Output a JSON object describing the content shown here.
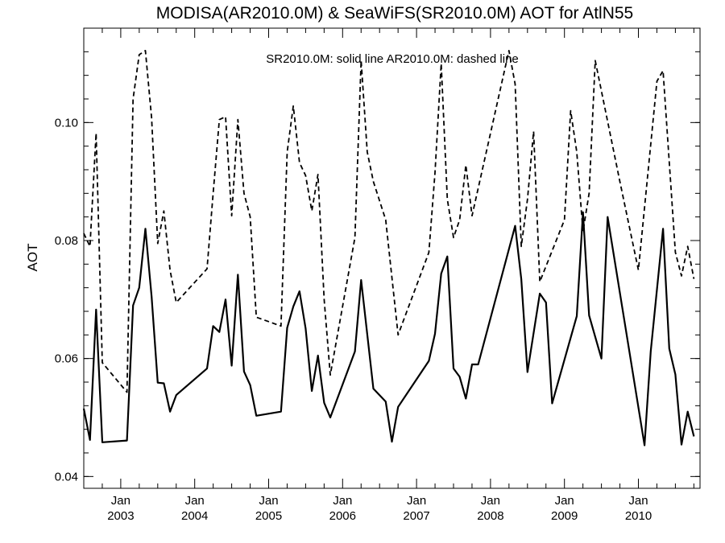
{
  "chart_data": {
    "type": "line",
    "title": "MODISA(AR2010.0M) & SeaWiFS(SR2010.0M)  AOT for AtlN55",
    "ylabel": "AOT",
    "xlabel": "",
    "annotation": "SR2010.0M: solid line   AR2010.0M: dashed line",
    "xlim": [
      "2002-07",
      "2010-11"
    ],
    "ylim": [
      0.038,
      0.116
    ],
    "grid": false,
    "y_ticks": [
      "0.04",
      "0.06",
      "0.08",
      "0.10"
    ],
    "x_ticks": [
      {
        "date": "2003-01",
        "month": "Jan",
        "year": "2003"
      },
      {
        "date": "2004-01",
        "month": "Jan",
        "year": "2004"
      },
      {
        "date": "2005-01",
        "month": "Jan",
        "year": "2005"
      },
      {
        "date": "2006-01",
        "month": "Jan",
        "year": "2006"
      },
      {
        "date": "2007-01",
        "month": "Jan",
        "year": "2007"
      },
      {
        "date": "2008-01",
        "month": "Jan",
        "year": "2008"
      },
      {
        "date": "2009-01",
        "month": "Jan",
        "year": "2009"
      },
      {
        "date": "2010-01",
        "month": "Jan",
        "year": "2010"
      }
    ],
    "series": [
      {
        "name": "SR2010.0M",
        "style": "solid",
        "color": "#000000",
        "points": [
          [
            "2002-07",
            0.0515
          ],
          [
            "2002-08",
            0.0462
          ],
          [
            "2002-09",
            0.0683
          ],
          [
            "2002-10",
            0.0458
          ],
          [
            "2003-02",
            0.0461
          ],
          [
            "2003-03",
            0.069
          ],
          [
            "2003-04",
            0.072
          ],
          [
            "2003-05",
            0.082
          ],
          [
            "2003-06",
            0.0705
          ],
          [
            "2003-07",
            0.0559
          ],
          [
            "2003-08",
            0.0558
          ],
          [
            "2003-09",
            0.051
          ],
          [
            "2003-10",
            0.0538
          ],
          [
            "2004-03",
            0.0583
          ],
          [
            "2004-04",
            0.0655
          ],
          [
            "2004-05",
            0.0645
          ],
          [
            "2004-06",
            0.07
          ],
          [
            "2004-07",
            0.0588
          ],
          [
            "2004-08",
            0.0742
          ],
          [
            "2004-09",
            0.0578
          ],
          [
            "2004-10",
            0.0555
          ],
          [
            "2004-11",
            0.0503
          ],
          [
            "2005-03",
            0.051
          ],
          [
            "2005-04",
            0.0652
          ],
          [
            "2005-05",
            0.0688
          ],
          [
            "2005-06",
            0.0714
          ],
          [
            "2005-07",
            0.0651
          ],
          [
            "2005-08",
            0.0545
          ],
          [
            "2005-09",
            0.0605
          ],
          [
            "2005-10",
            0.0525
          ],
          [
            "2005-11",
            0.05
          ],
          [
            "2006-03",
            0.0612
          ],
          [
            "2006-04",
            0.0733
          ],
          [
            "2006-06",
            0.0549
          ],
          [
            "2006-08",
            0.0527
          ],
          [
            "2006-09",
            0.0459
          ],
          [
            "2006-10",
            0.0518
          ],
          [
            "2007-03",
            0.0596
          ],
          [
            "2007-04",
            0.0642
          ],
          [
            "2007-05",
            0.0744
          ],
          [
            "2007-06",
            0.0773
          ],
          [
            "2007-07",
            0.0583
          ],
          [
            "2007-08",
            0.0569
          ],
          [
            "2007-09",
            0.0532
          ],
          [
            "2007-10",
            0.059
          ],
          [
            "2007-11",
            0.059
          ],
          [
            "2008-05",
            0.0825
          ],
          [
            "2008-06",
            0.0735
          ],
          [
            "2008-07",
            0.0577
          ],
          [
            "2008-09",
            0.071
          ],
          [
            "2008-10",
            0.0695
          ],
          [
            "2008-11",
            0.0524
          ],
          [
            "2009-03",
            0.0672
          ],
          [
            "2009-04",
            0.0848
          ],
          [
            "2009-05",
            0.0673
          ],
          [
            "2009-07",
            0.06
          ],
          [
            "2009-08",
            0.084
          ],
          [
            "2010-02",
            0.0453
          ],
          [
            "2010-03",
            0.0612
          ],
          [
            "2010-05",
            0.082
          ],
          [
            "2010-06",
            0.0617
          ],
          [
            "2010-07",
            0.0573
          ],
          [
            "2010-08",
            0.0454
          ],
          [
            "2010-09",
            0.051
          ],
          [
            "2010-10",
            0.0468
          ]
        ]
      },
      {
        "name": "AR2010.0M",
        "style": "dashed",
        "color": "#000000",
        "points": [
          [
            "2002-07",
            0.0812
          ],
          [
            "2002-08",
            0.079
          ],
          [
            "2002-09",
            0.0982
          ],
          [
            "2002-10",
            0.0593
          ],
          [
            "2003-02",
            0.0543
          ],
          [
            "2003-03",
            0.104
          ],
          [
            "2003-04",
            0.1115
          ],
          [
            "2003-05",
            0.1122
          ],
          [
            "2003-06",
            0.1008
          ],
          [
            "2003-07",
            0.0795
          ],
          [
            "2003-08",
            0.085
          ],
          [
            "2003-09",
            0.075
          ],
          [
            "2003-10",
            0.0695
          ],
          [
            "2004-03",
            0.0752
          ],
          [
            "2004-04",
            0.088
          ],
          [
            "2004-05",
            0.1005
          ],
          [
            "2004-06",
            0.101
          ],
          [
            "2004-07",
            0.0842
          ],
          [
            "2004-08",
            0.1005
          ],
          [
            "2004-09",
            0.088
          ],
          [
            "2004-10",
            0.084
          ],
          [
            "2004-11",
            0.067
          ],
          [
            "2005-03",
            0.0655
          ],
          [
            "2005-04",
            0.095
          ],
          [
            "2005-05",
            0.1028
          ],
          [
            "2005-06",
            0.0932
          ],
          [
            "2005-07",
            0.091
          ],
          [
            "2005-08",
            0.085
          ],
          [
            "2005-09",
            0.0912
          ],
          [
            "2005-10",
            0.07
          ],
          [
            "2005-11",
            0.0572
          ],
          [
            "2006-03",
            0.0805
          ],
          [
            "2006-04",
            0.1105
          ],
          [
            "2006-05",
            0.095
          ],
          [
            "2006-06",
            0.09
          ],
          [
            "2006-08",
            0.0835
          ],
          [
            "2006-10",
            0.064
          ],
          [
            "2007-03",
            0.078
          ],
          [
            "2007-04",
            0.0915
          ],
          [
            "2007-05",
            0.11
          ],
          [
            "2007-06",
            0.087
          ],
          [
            "2007-07",
            0.0805
          ],
          [
            "2007-08",
            0.0835
          ],
          [
            "2007-09",
            0.0928
          ],
          [
            "2007-10",
            0.0842
          ],
          [
            "2008-04",
            0.1122
          ],
          [
            "2008-05",
            0.1065
          ],
          [
            "2008-06",
            0.079
          ],
          [
            "2008-07",
            0.087
          ],
          [
            "2008-08",
            0.0985
          ],
          [
            "2008-09",
            0.073
          ],
          [
            "2009-01",
            0.0835
          ],
          [
            "2009-02",
            0.102
          ],
          [
            "2009-03",
            0.095
          ],
          [
            "2009-04",
            0.0815
          ],
          [
            "2009-05",
            0.088
          ],
          [
            "2009-06",
            0.1105
          ],
          [
            "2009-10",
            0.09
          ],
          [
            "2010-01",
            0.075
          ],
          [
            "2010-04",
            0.107
          ],
          [
            "2010-05",
            0.1088
          ],
          [
            "2010-07",
            0.078
          ],
          [
            "2010-08",
            0.074
          ],
          [
            "2010-09",
            0.079
          ],
          [
            "2010-10",
            0.0735
          ]
        ]
      }
    ]
  }
}
